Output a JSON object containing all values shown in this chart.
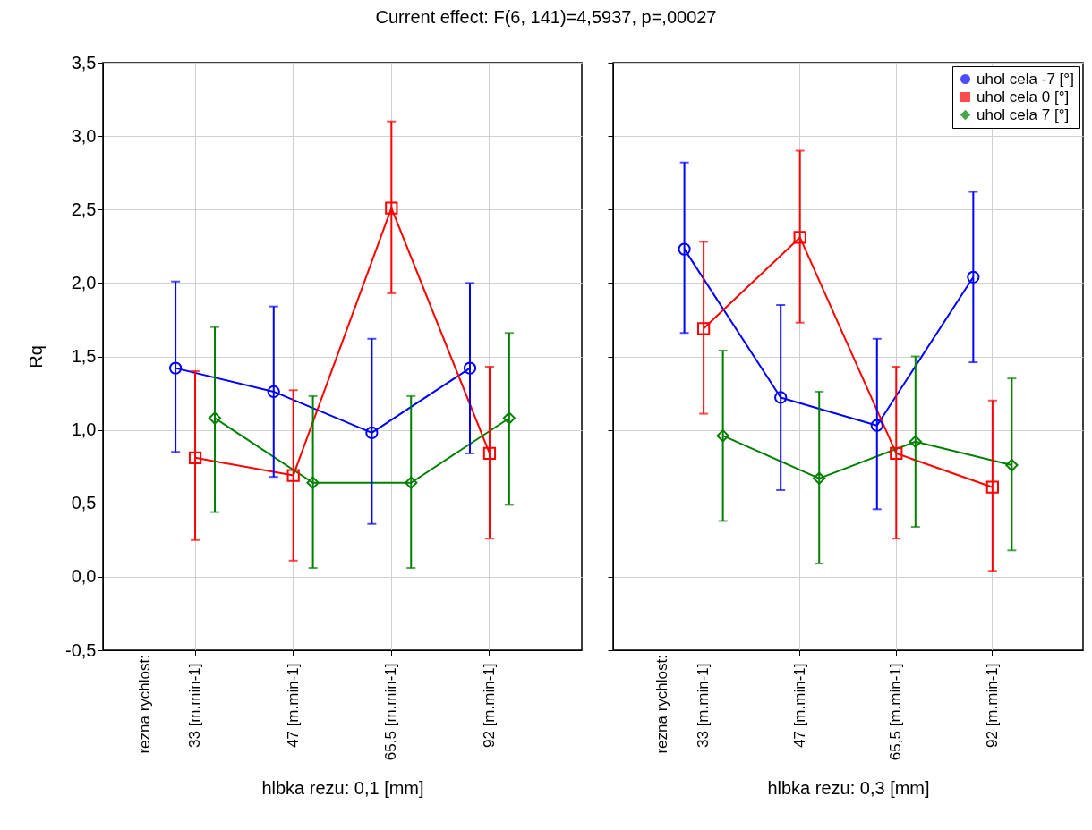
{
  "chart_data": [
    {
      "type": "line",
      "title": "Current effect: F(6, 141)=4,5937, p=,00027",
      "xlabel": "hlbka rezu: 0,1 [mm]",
      "ylabel": "Rq",
      "annotations": [
        "rezna rychlost:"
      ],
      "categories": [
        "33 [m.min-1]",
        "47 [m.min-1]",
        "65,5 [m.min-1]",
        "92 [m.min-1]"
      ],
      "series": [
        {
          "color": "#0000ff",
          "marker": "circle",
          "values": [
            1.42,
            1.26,
            0.98,
            1.42
          ],
          "errors": [
            [
              0.85,
              2.01
            ],
            [
              0.68,
              1.84
            ],
            [
              0.36,
              1.62
            ],
            [
              0.84,
              2.0
            ]
          ]
        },
        {
          "color": "#ff0000",
          "marker": "square",
          "values": [
            0.81,
            0.69,
            2.51,
            0.84
          ],
          "errors": [
            [
              0.25,
              1.4
            ],
            [
              0.11,
              1.27
            ],
            [
              1.93,
              3.1
            ],
            [
              0.26,
              1.43
            ]
          ]
        },
        {
          "color": "#008000",
          "marker": "diamond",
          "values": [
            1.08,
            0.64,
            0.64,
            1.08
          ],
          "errors": [
            [
              0.44,
              1.7
            ],
            [
              0.06,
              1.23
            ],
            [
              0.06,
              1.23
            ],
            [
              0.49,
              1.66
            ]
          ]
        }
      ],
      "ylim": [
        -0.5,
        3.5
      ],
      "yticks": [
        {
          "value": -0.5,
          "label": "-0,5"
        },
        {
          "value": 0,
          "label": "0,0"
        },
        {
          "value": 0.5,
          "label": "0,5"
        },
        {
          "value": 1,
          "label": "1,0"
        },
        {
          "value": 1.5,
          "label": "1,5"
        },
        {
          "value": 2,
          "label": "2,0"
        },
        {
          "value": 2.5,
          "label": "2,5"
        },
        {
          "value": 3,
          "label": "3,0"
        },
        {
          "value": 3.5,
          "label": "3,5"
        }
      ],
      "grid": true,
      "line_style": "solid"
    },
    {
      "type": "line",
      "xlabel": "hlbka rezu: 0,3 [mm]",
      "annotations": [
        "rezna rychlost:"
      ],
      "categories": [
        "33 [m.min-1]",
        "47 [m.min-1]",
        "65,5 [m.min-1]",
        "92 [m.min-1]"
      ],
      "series": [
        {
          "name": "uhol cela -7 [°]",
          "color": "#0000ff",
          "marker": "circle",
          "values": [
            2.23,
            1.22,
            1.03,
            2.04
          ],
          "errors": [
            [
              1.66,
              2.82
            ],
            [
              0.59,
              1.85
            ],
            [
              0.46,
              1.62
            ],
            [
              1.46,
              2.62
            ]
          ]
        },
        {
          "name": "uhol cela 0 [°]",
          "color": "#ff0000",
          "marker": "square",
          "values": [
            1.69,
            2.31,
            0.84,
            0.61
          ],
          "errors": [
            [
              1.11,
              2.28
            ],
            [
              1.73,
              2.9
            ],
            [
              0.26,
              1.43
            ],
            [
              0.04,
              1.2
            ]
          ]
        },
        {
          "name": "uhol cela 7 [°]",
          "color": "#008000",
          "marker": "diamond",
          "values": [
            0.96,
            0.67,
            0.92,
            0.76
          ],
          "errors": [
            [
              0.38,
              1.54
            ],
            [
              0.09,
              1.26
            ],
            [
              0.34,
              1.5
            ],
            [
              0.18,
              1.35
            ]
          ]
        }
      ],
      "ylim": [
        -0.5,
        3.5
      ],
      "yticks": [
        -0.5,
        0,
        0.5,
        1,
        1.5,
        2,
        2.5,
        3,
        3.5
      ],
      "grid": true,
      "legend": "top right",
      "tick_labels": "x",
      "line_style": "solid"
    }
  ]
}
